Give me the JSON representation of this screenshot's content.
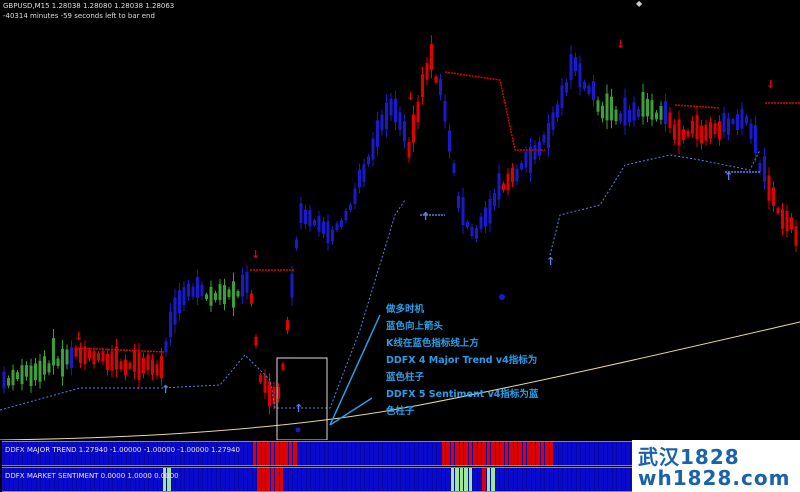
{
  "header": {
    "symbol_line": "GBPUSD,M15  1.28038 1.28080 1.28038 1.28063",
    "timer_line": "-40314 minutes -59 seconds left to bar end"
  },
  "annotation": {
    "lines": [
      "做多时机",
      "蓝色向上箭头",
      "K线在蓝色指标线上方",
      "DDFX 4 Major Trend v4指标为",
      "蓝色柱子",
      "DDFX 5 Sentiment v4指标为蓝",
      "色柱子"
    ]
  },
  "indicators": {
    "major_trend": {
      "label": "DDFX MAJOR TREND 1.27940 -1.00000 -1.00000 -1.00000 1.27940"
    },
    "market_sentiment": {
      "label": "DDFX MARKET SENTIMENT 0.0000 1.0000 0.0000"
    }
  },
  "watermark": {
    "line1": "武汉1828",
    "line2": "wh1828.com"
  },
  "colors": {
    "bull": "#1a1acc",
    "bear": "#e00000",
    "neutral": "#3aa03a",
    "trend_line": "#5a7ee8",
    "ma_line": "#e8d8a0",
    "annotation": "#2a9de8",
    "sentiment_green": "#9be89b"
  }
}
